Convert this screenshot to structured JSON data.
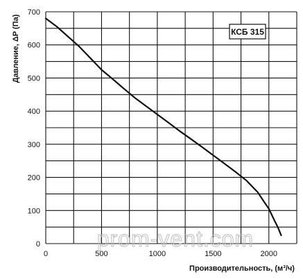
{
  "chart_data": {
    "type": "line",
    "title": "КСБ 315",
    "xlabel": "Производительность, (м³/ч)",
    "ylabel": "Давление, ΔP (Па)",
    "xlim": [
      0,
      2250
    ],
    "ylim": [
      0,
      700
    ],
    "x_ticks": [
      0,
      250,
      500,
      750,
      1000,
      1250,
      1500,
      1750,
      2000,
      2250
    ],
    "x_tick_labels": [
      "0",
      "",
      "500",
      "",
      "1000",
      "",
      "1500",
      "",
      "2000",
      ""
    ],
    "y_ticks": [
      0,
      50,
      100,
      150,
      200,
      250,
      300,
      350,
      400,
      450,
      500,
      550,
      600,
      650,
      700
    ],
    "y_tick_labels": [
      "0",
      "",
      "100",
      "",
      "200",
      "",
      "300",
      "",
      "400",
      "",
      "500",
      "",
      "600",
      "",
      "700"
    ],
    "grid": true,
    "series": [
      {
        "x": [
          0,
          100,
          200,
          300,
          400,
          500,
          600,
          700,
          800,
          900,
          1000,
          1100,
          1200,
          1300,
          1400,
          1500,
          1600,
          1700,
          1800,
          1900,
          1950,
          2000,
          2050,
          2080,
          2110
        ],
        "y": [
          680,
          655,
          625,
          595,
          560,
          525,
          497,
          468,
          440,
          415,
          390,
          365,
          340,
          316,
          292,
          267,
          242,
          217,
          190,
          155,
          130,
          105,
          70,
          50,
          25
        ]
      }
    ],
    "line_color": "#111111"
  },
  "watermark": "prom-vent.com"
}
